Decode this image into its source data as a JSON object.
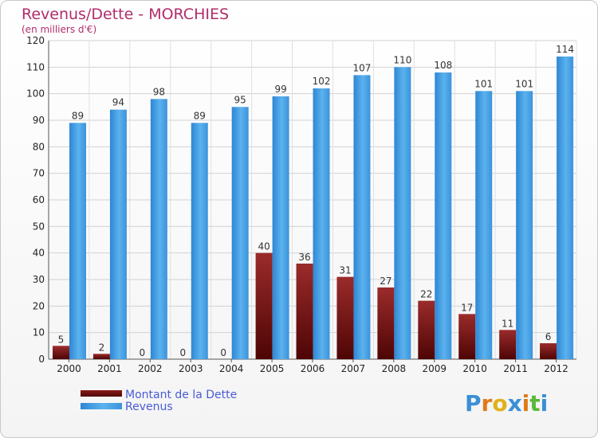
{
  "colors": {
    "title": "#b02c6a",
    "dette": "#6e0a0a",
    "dette_light": "#9a2a2a",
    "revenus": "#4aa3e8",
    "revenus_light": "#62b4f0",
    "legend_text": "#4a5bd4"
  },
  "chart_data": {
    "type": "bar",
    "title": "Revenus/Dette - MORCHIES",
    "subtitle": "(en milliers d'€)",
    "xlabel": "",
    "ylabel": "",
    "ylim": [
      0,
      120
    ],
    "yticks": [
      0,
      10,
      20,
      30,
      40,
      50,
      60,
      70,
      80,
      90,
      100,
      110,
      120
    ],
    "grid": true,
    "legend_position": "bottom-left",
    "categories": [
      "2000",
      "2001",
      "2002",
      "2003",
      "2004",
      "2005",
      "2006",
      "2007",
      "2008",
      "2009",
      "2010",
      "2011",
      "2012"
    ],
    "series": [
      {
        "name": "Montant de la Dette",
        "values": [
          5,
          2,
          0,
          0,
          0,
          40,
          36,
          31,
          27,
          22,
          17,
          11,
          6
        ]
      },
      {
        "name": "Revenus",
        "values": [
          89,
          94,
          98,
          89,
          95,
          99,
          102,
          107,
          110,
          108,
          101,
          101,
          114
        ]
      }
    ]
  },
  "brand": {
    "text": "Proxiti",
    "letter_colors": [
      "#3a8fd6",
      "#e07a1a",
      "#e0b21a",
      "#3a8fd6",
      "#e07a1a",
      "#5ab83a",
      "#3a8fd6"
    ]
  }
}
